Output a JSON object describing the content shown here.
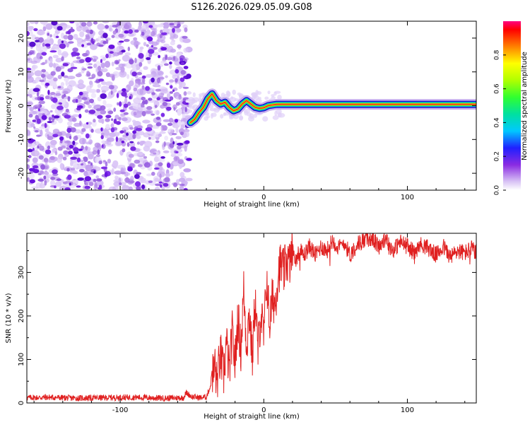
{
  "title": "S126.2026.029.05.09.G08",
  "chart_data": [
    {
      "type": "heatmap",
      "name": "spectrogram",
      "xlabel": "Height of straight line (km)",
      "ylabel": "Frequency (Hz)",
      "xlim": [
        -165,
        148
      ],
      "ylim": [
        -25,
        25
      ],
      "xticks": [
        -100,
        0,
        100
      ],
      "yticks": [
        -20,
        -10,
        0,
        10,
        20
      ],
      "noise_region_x": [
        -165,
        -52
      ],
      "signal_start_x": -52,
      "signal_trace": {
        "x": [
          -51,
          -48,
          -45,
          -42,
          -39,
          -36,
          -33,
          -30,
          -27,
          -24,
          -21,
          -18,
          -15,
          -12,
          -9,
          -6,
          -3,
          0,
          3,
          6,
          9,
          148
        ],
        "y": [
          -5,
          -4,
          -2,
          -0.5,
          2,
          3.5,
          1.5,
          0.5,
          1,
          -0.5,
          -1.5,
          -1,
          0.5,
          1.5,
          0.5,
          -0.5,
          -0.8,
          -0.6,
          0,
          0.2,
          0.4,
          0.4
        ]
      },
      "colorbar": {
        "label": "Normalized spectral amplitude",
        "ticks": [
          0.0,
          0.2,
          0.4,
          0.6,
          0.8
        ],
        "range": [
          0,
          1
        ]
      }
    },
    {
      "type": "line",
      "name": "snr",
      "xlabel": "Height of straight line (km)",
      "ylabel": "SNR (10 * v/v)",
      "xlim": [
        -165,
        148
      ],
      "ylim": [
        0,
        390
      ],
      "xticks": [
        -100,
        0,
        100
      ],
      "yticks": [
        0,
        100,
        200,
        300
      ],
      "color": "#e02020",
      "series": {
        "x": [
          -165,
          -150,
          -130,
          -110,
          -90,
          -70,
          -56,
          -54,
          -50,
          -44,
          -40,
          -37,
          -36,
          -35,
          -34,
          -33,
          -30,
          -28,
          -26,
          -24,
          -22,
          -20,
          -18,
          -16,
          -14,
          -12,
          -10,
          -8,
          -6,
          -4,
          -2,
          0,
          2,
          4,
          6,
          8,
          10,
          12,
          14,
          16,
          18,
          20,
          22,
          25,
          28,
          32,
          36,
          40,
          44,
          48,
          52,
          56,
          60,
          65,
          70,
          75,
          80,
          85,
          90,
          95,
          100,
          105,
          110,
          115,
          120,
          125,
          130,
          135,
          140,
          145,
          148
        ],
        "y": [
          12,
          13,
          11,
          12,
          13,
          11,
          12,
          24,
          14,
          12,
          14,
          40,
          80,
          60,
          95,
          45,
          110,
          60,
          140,
          70,
          160,
          90,
          200,
          120,
          260,
          130,
          210,
          100,
          240,
          120,
          210,
          150,
          290,
          180,
          240,
          230,
          300,
          320,
          300,
          330,
          320,
          350,
          330,
          350,
          340,
          360,
          340,
          360,
          350,
          375,
          355,
          370,
          340,
          365,
          375,
          380,
          360,
          375,
          350,
          370,
          360,
          345,
          365,
          355,
          340,
          360,
          335,
          350,
          345,
          355,
          345
        ]
      }
    }
  ]
}
